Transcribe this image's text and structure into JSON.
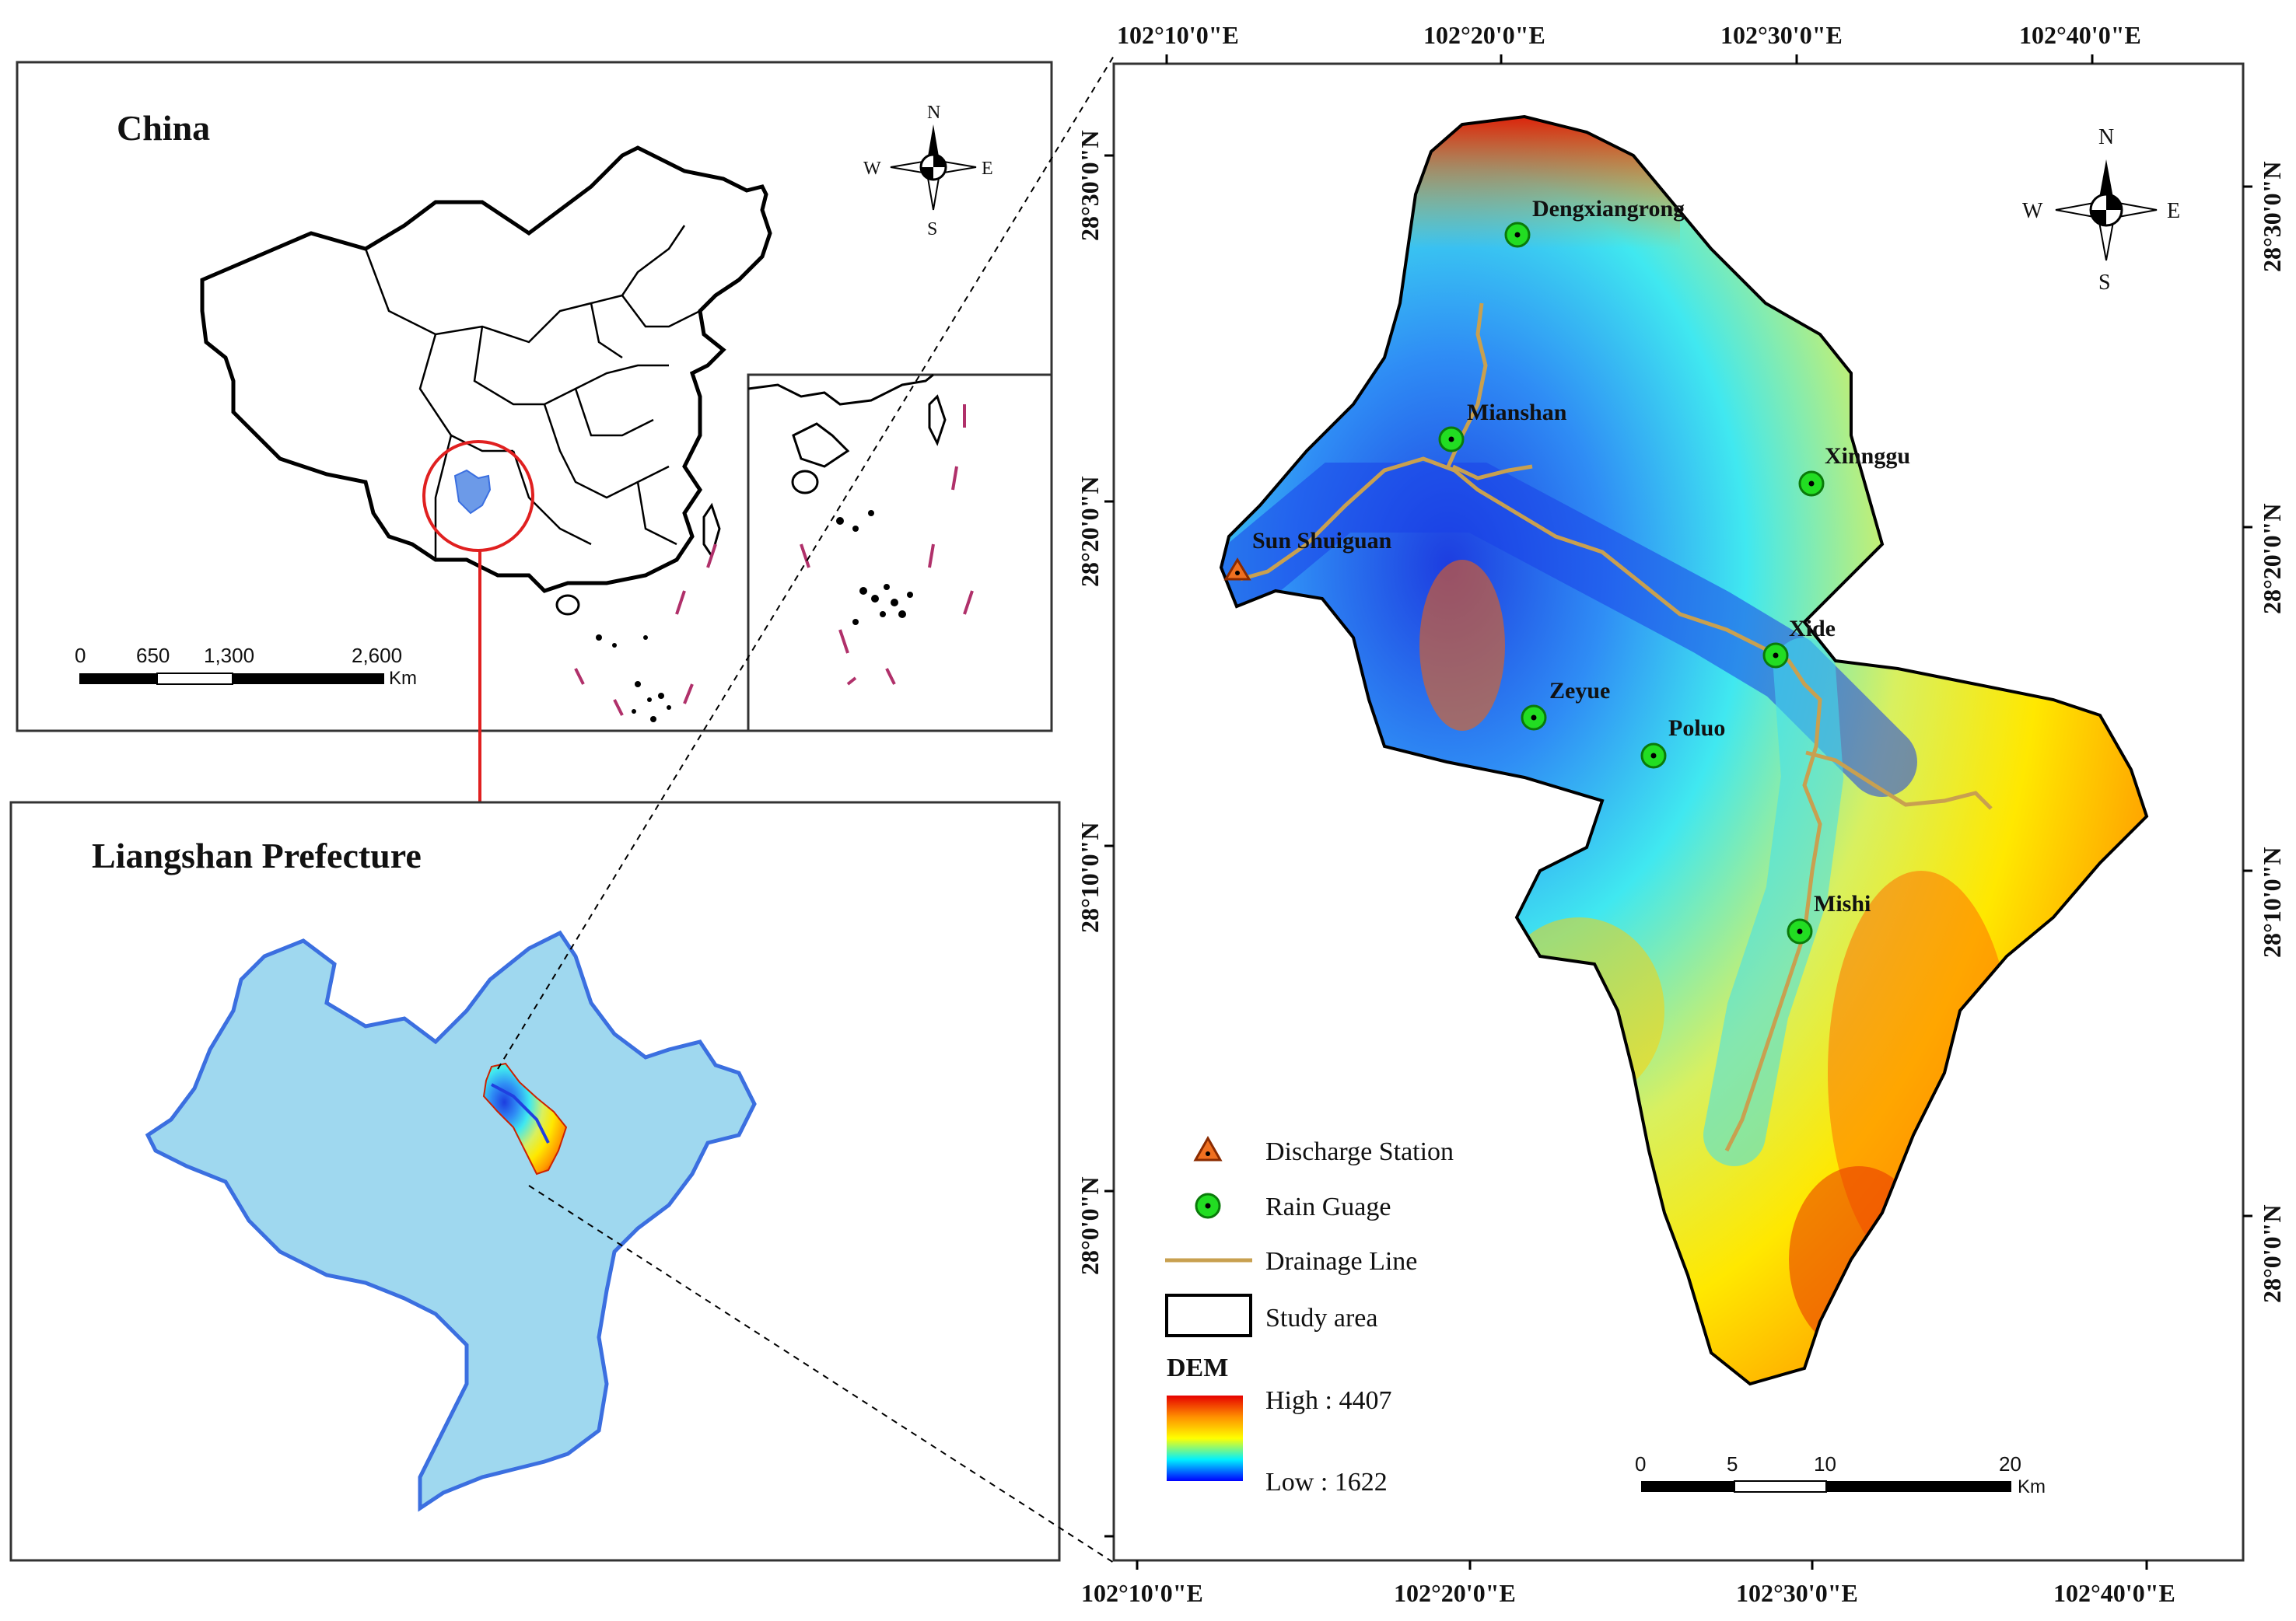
{
  "panels": {
    "china": {
      "title": "China"
    },
    "liangshan": {
      "title": "Liangshan  Prefecture"
    }
  },
  "compass": {
    "north": "N",
    "south": "S",
    "east": "E",
    "west": "W"
  },
  "china_scale": {
    "ticks": [
      "0",
      "650",
      "1,300",
      "2,600"
    ],
    "unit": "Km"
  },
  "study_scale": {
    "ticks": [
      "0",
      "5",
      "10",
      "20"
    ],
    "unit": "Km"
  },
  "axes": {
    "top_lon": [
      "102°10'0\"E",
      "102°20'0\"E",
      "102°30'0\"E",
      "102°40'0\"E"
    ],
    "bottom_lon": [
      "102°10'0\"E",
      "102°20'0\"E",
      "102°30'0\"E",
      "102°40'0\"E"
    ],
    "left_lat": [
      "28°30'0\"N",
      "28°20'0\"N",
      "28°10'0\"N",
      "28°0'0\"N"
    ],
    "right_lat": [
      "28°30'0\"N",
      "28°20'0\"N",
      "28°10'0\"N",
      "28°0'0\"N"
    ]
  },
  "stations": {
    "discharge": [
      {
        "name": "Sun Shuiguan"
      }
    ],
    "rain": [
      {
        "name": "Dengxiangrong"
      },
      {
        "name": "Mianshan"
      },
      {
        "name": "Xinnggu"
      },
      {
        "name": "Xide"
      },
      {
        "name": "Zeyue"
      },
      {
        "name": "Poluo"
      },
      {
        "name": "Mishi"
      }
    ]
  },
  "legend": {
    "discharge": "Discharge Station",
    "rain": "Rain Guage",
    "drainage": "Drainage Line",
    "study": "Study area",
    "dem_title": "DEM",
    "dem_high": "High : 4407",
    "dem_low": "Low : 1622"
  },
  "colors": {
    "dem_high": "#e60000",
    "dem_mid_high": "#ff8c00",
    "dem_mid": "#ffff00",
    "dem_mid_low": "#00ffff",
    "dem_low": "#0000ff",
    "drainage": "#c8a050",
    "rain_gauge": "#22dd22",
    "discharge_station": "#f07020",
    "liangshan_fill": "#9fd8ef",
    "liangshan_border": "#3b6fe0",
    "locator_circle": "#e02020"
  }
}
